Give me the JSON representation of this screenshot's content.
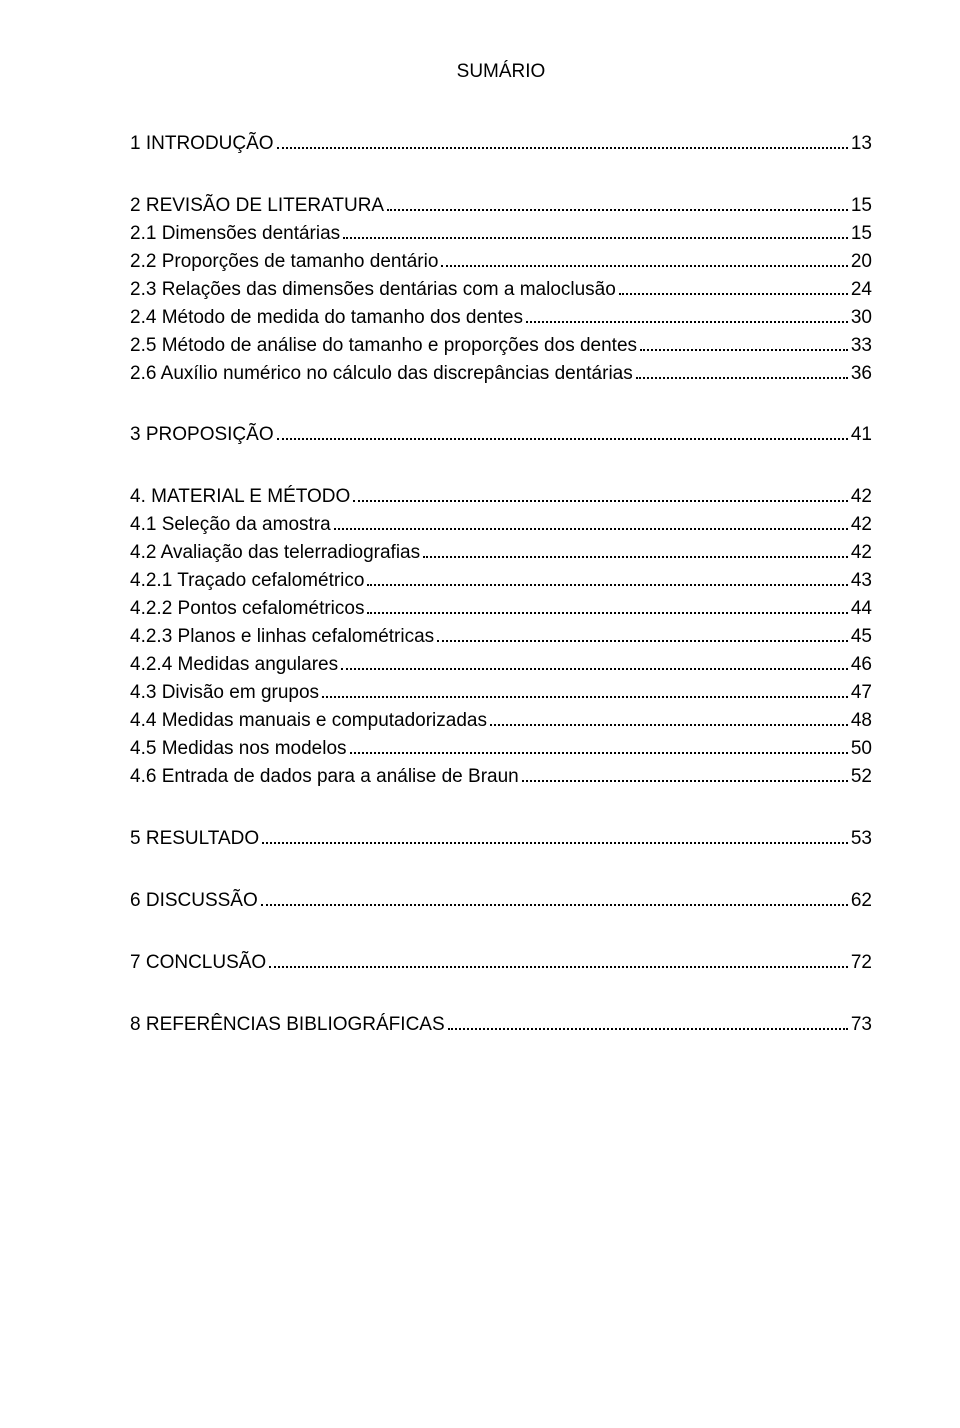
{
  "title": "SUMÁRIO",
  "entries": [
    {
      "label": "1  INTRODUÇÃO",
      "page": "13",
      "gapAfter": true
    },
    {
      "label": "2 REVISÃO DE LITERATURA",
      "page": "15"
    },
    {
      "label": "2.1 Dimensões dentárias",
      "page": "15"
    },
    {
      "label": "2.2 Proporções de tamanho dentário",
      "page": "20"
    },
    {
      "label": "2.3 Relações das dimensões dentárias com a maloclusão",
      "page": "24"
    },
    {
      "label": "2.4 Método de medida do tamanho dos dentes",
      "page": "30"
    },
    {
      "label": "2.5 Método de análise do tamanho e proporções dos dentes",
      "page": "33"
    },
    {
      "label": "2.6 Auxílio numérico no cálculo das discrepâncias dentárias",
      "page": "36",
      "gapAfter": true
    },
    {
      "label": "3 PROPOSIÇÃO",
      "page": "41",
      "gapAfter": true
    },
    {
      "label": "4. MATERIAL E MÉTODO",
      "page": "42"
    },
    {
      "label": "4.1 Seleção da amostra",
      "page": "42"
    },
    {
      "label": "4.2 Avaliação das telerradiografias",
      "page": "42"
    },
    {
      "label": "4.2.1 Traçado cefalométrico",
      "page": "43"
    },
    {
      "label": "4.2.2 Pontos cefalométricos",
      "page": "44"
    },
    {
      "label": "4.2.3   Planos e linhas cefalométricas",
      "page": "45"
    },
    {
      "label": "4.2.4 Medidas angulares",
      "page": "46"
    },
    {
      "label": "4.3 Divisão em grupos",
      "page": "47"
    },
    {
      "label": "4.4 Medidas manuais e computadorizadas",
      "page": "48"
    },
    {
      "label": "4.5 Medidas nos modelos",
      "page": "50"
    },
    {
      "label": "4.6 Entrada de dados para a análise de Braun",
      "page": "52",
      "gapAfter": true
    },
    {
      "label": "5 RESULTADO",
      "page": "53",
      "gapAfter": true
    },
    {
      "label": "6 DISCUSSÃO",
      "page": "62",
      "gapAfter": true
    },
    {
      "label": "7 CONCLUSÃO",
      "page": "72",
      "gapAfter": true
    },
    {
      "label": "8 REFERÊNCIAS BIBLIOGRÁFICAS",
      "page": "73"
    }
  ]
}
